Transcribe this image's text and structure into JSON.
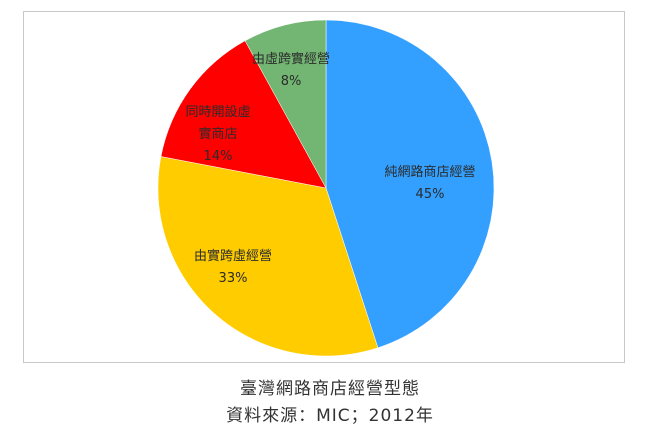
{
  "chart_data": {
    "type": "pie",
    "title": "臺灣網路商店經營型態",
    "source": "資料來源：MIC；2012年",
    "slices": [
      {
        "label": "純網路商店經營",
        "label_lines": [
          "純網路商店經營"
        ],
        "value": 45,
        "value_label": "45%",
        "color": "#33a0ff"
      },
      {
        "label": "由實跨虛經營",
        "label_lines": [
          "由實跨虛經營"
        ],
        "value": 33,
        "value_label": "33%",
        "color": "#ffcc00"
      },
      {
        "label": "同時開設虛實商店",
        "label_lines": [
          "同時開設虛",
          "實商店"
        ],
        "value": 14,
        "value_label": "14%",
        "color": "#ff0000"
      },
      {
        "label": "由虛跨實經營",
        "label_lines": [
          "由虛跨實經營"
        ],
        "value": 8,
        "value_label": "8%",
        "color": "#73b673"
      }
    ]
  }
}
